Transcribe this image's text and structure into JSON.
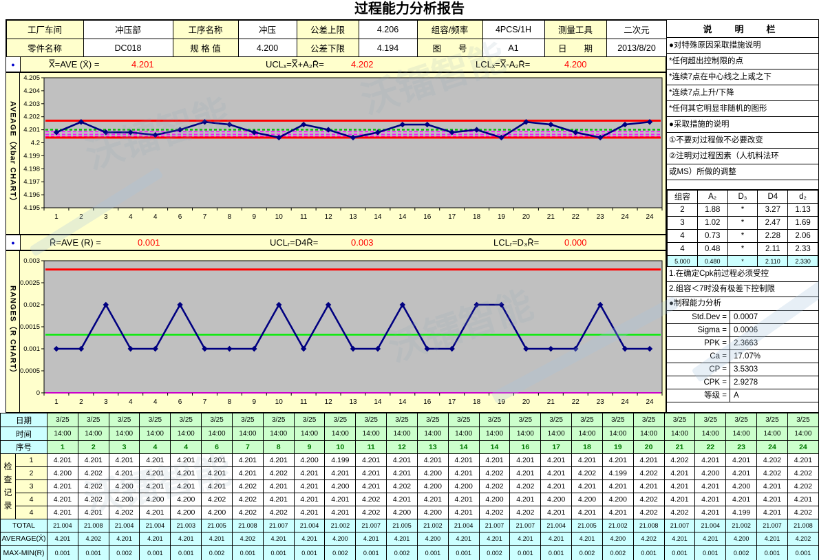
{
  "title": "过程能力分析报告",
  "watermark": "沃镭智能",
  "header": {
    "rows": [
      [
        {
          "label": "工厂车间",
          "value": "冲压部"
        },
        {
          "label": "工序名称",
          "value": "冲压"
        },
        {
          "label": "公差上限",
          "value": "4.206"
        },
        {
          "label": "组容/频率",
          "value": "4PCS/1H"
        },
        {
          "label": "测量工具",
          "value": "二次元"
        }
      ],
      [
        {
          "label": "零件名称",
          "value": "DC018"
        },
        {
          "label": "规 格 值",
          "value": "4.200"
        },
        {
          "label": "公差下限",
          "value": "4.194"
        },
        {
          "label": "图　　号",
          "value": "A1"
        },
        {
          "label": "日　　期",
          "value": "2013/8/20"
        }
      ]
    ]
  },
  "xbar_stats": {
    "bullet": "●",
    "f1": "X̿=AVE (X̄) =",
    "v1": "4.201",
    "f2": "UCLₓ=X̿+A₂R̄=",
    "v2": "4.202",
    "f3": "LCLₓ=X̿-A₂R̄=",
    "v3": "4.200"
  },
  "r_stats": {
    "bullet": "●",
    "f1": "R̄=AVE (R) =",
    "v1": "0.001",
    "f2": "UCLᵣ=D4R̄=",
    "v2": "0.003",
    "f3": "LCLᵣ=D₃R̄=",
    "v3": "0.000"
  },
  "chart_data": [
    {
      "type": "line",
      "name": "xbar-chart",
      "side_label": "AVEAGE（Xbar CHART）",
      "categories": [
        "1",
        "2",
        "3",
        "4",
        "4",
        "6",
        "7",
        "8",
        "9",
        "10",
        "11",
        "12",
        "13",
        "14",
        "14",
        "16",
        "17",
        "18",
        "19",
        "20",
        "21",
        "22",
        "23",
        "24",
        "24"
      ],
      "values": [
        4.2008,
        4.2016,
        4.2008,
        4.2008,
        4.2006,
        4.201,
        4.2016,
        4.2014,
        4.2008,
        4.2004,
        4.2014,
        4.201,
        4.2004,
        4.2008,
        4.2014,
        4.2014,
        4.2008,
        4.201,
        4.2004,
        4.2016,
        4.2014,
        4.2008,
        4.2004,
        4.2014,
        4.2016
      ],
      "ucl": 4.2017,
      "center": 4.201,
      "lcl": 4.2004,
      "zone_lines": [
        4.20085,
        4.20065,
        4.2005
      ],
      "ylim": [
        4.195,
        4.205
      ],
      "yticks": [
        "4.205",
        "4.204",
        "4.203",
        "4.202",
        "4.201",
        "4.2",
        "4.199",
        "4.198",
        "4.197",
        "4.196",
        "4.195"
      ],
      "center_dash": true,
      "colors": {
        "series": "#000080",
        "ucl": "#FF0000",
        "center": "#00BB00",
        "lcl": "#FF0000",
        "zone": "#FF00FF",
        "plot_bg": "#C0C0C0",
        "outer_bg": "#FFFFCC"
      }
    },
    {
      "type": "line",
      "name": "r-chart",
      "side_label": "RANGES（R CHART）",
      "categories": [
        "1",
        "2",
        "3",
        "4",
        "4",
        "6",
        "7",
        "8",
        "9",
        "10",
        "11",
        "12",
        "13",
        "14",
        "14",
        "16",
        "17",
        "18",
        "19",
        "20",
        "21",
        "22",
        "23",
        "24",
        "24"
      ],
      "values": [
        0.001,
        0.001,
        0.002,
        0.001,
        0.001,
        0.002,
        0.001,
        0.001,
        0.001,
        0.002,
        0.001,
        0.002,
        0.001,
        0.001,
        0.002,
        0.001,
        0.001,
        0.002,
        0.002,
        0.001,
        0.001,
        0.001,
        0.002,
        0.001,
        0.001
      ],
      "ucl": 0.0028,
      "center": 0.00132,
      "lcl": 0,
      "zone_lines": [],
      "ylim": [
        0,
        0.003
      ],
      "yticks": [
        "0.003",
        "0.0025",
        "0.002",
        "0.0015",
        "0.001",
        "0.0005",
        "0"
      ],
      "center_dash": false,
      "colors": {
        "series": "#000080",
        "ucl": "#FF0000",
        "center": "#00EE00",
        "lcl": "#CC00CC",
        "zone": "#FF00FF",
        "plot_bg": "#C0C0C0",
        "outer_bg": "#FFFFCC"
      }
    }
  ],
  "sidebar": {
    "title": "说　明　栏",
    "notes": [
      "●对特殊原因采取措施说明",
      "*任何超出控制限的点",
      "*连续7点在中心线之上或之下",
      "*连续7点上升/下降",
      "*任何其它明显非随机的图形",
      "●采取措施的说明",
      "①不要对过程做不必要改变",
      "②注明对过程因素（人机料法环",
      "或MS）所做的调整"
    ],
    "constants": {
      "headers": [
        "组容",
        "A₂",
        "D₃",
        "D4",
        "d₂"
      ],
      "rows": [
        [
          "2",
          "1.88",
          "*",
          "3.27",
          "1.13"
        ],
        [
          "3",
          "1.02",
          "*",
          "2.47",
          "1.69"
        ],
        [
          "4",
          "0.73",
          "*",
          "2.28",
          "2.06"
        ],
        [
          "4",
          "0.48",
          "*",
          "2.11",
          "2.33"
        ]
      ],
      "active_row": [
        "5.000",
        "0.480",
        "*",
        "2.110",
        "2.330"
      ]
    },
    "cpk_notes": [
      "1.在确定Cpk前过程必须受控",
      "2.组容＜7时没有极差下控制限"
    ],
    "capability_title": "●制程能力分析",
    "capability": [
      {
        "label": "Std.Dev =",
        "value": "0.0007"
      },
      {
        "label": "Sigma =",
        "value": "0.0006"
      },
      {
        "label": "PPK =",
        "value": "2.3663"
      },
      {
        "label": "Ca =",
        "value": "17.07%"
      },
      {
        "label": "CP =",
        "value": "3.5303"
      },
      {
        "label": "CPK =",
        "value": "2.9278"
      },
      {
        "label": "等级 =",
        "value": "A"
      }
    ]
  },
  "bottom_table": {
    "date_label": "日期",
    "time_label": "时间",
    "seq_label": "序号",
    "record_label": "检\n查\n记\n录",
    "record_row_nums": [
      "1",
      "2",
      "3",
      "4",
      "4"
    ],
    "dates": [
      "3/25",
      "3/25",
      "3/25",
      "3/25",
      "3/25",
      "3/25",
      "3/25",
      "3/25",
      "3/25",
      "3/25",
      "3/25",
      "3/25",
      "3/25",
      "3/25",
      "3/25",
      "3/25",
      "3/25",
      "3/25",
      "3/25",
      "3/25",
      "3/25",
      "3/25",
      "3/25",
      "3/25",
      "3/25"
    ],
    "times": [
      "14:00",
      "14:00",
      "14:00",
      "14:00",
      "14:00",
      "14:00",
      "14:00",
      "14:00",
      "14:00",
      "14:00",
      "14:00",
      "14:00",
      "14:00",
      "14:00",
      "14:00",
      "14:00",
      "14:00",
      "14:00",
      "14:00",
      "14:00",
      "14:00",
      "14:00",
      "14:00",
      "14:00",
      "14:00"
    ],
    "seq": [
      "1",
      "2",
      "3",
      "4",
      "4",
      "6",
      "7",
      "8",
      "9",
      "10",
      "11",
      "12",
      "13",
      "14",
      "14",
      "16",
      "17",
      "18",
      "19",
      "20",
      "21",
      "22",
      "23",
      "24",
      "24"
    ],
    "records": [
      [
        "4.201",
        "4.201",
        "4.201",
        "4.201",
        "4.201",
        "4.201",
        "4.201",
        "4.201",
        "4.200",
        "4.199",
        "4.201",
        "4.201",
        "4.201",
        "4.201",
        "4.201",
        "4.201",
        "4.201",
        "4.201",
        "4.201",
        "4.201",
        "4.202",
        "4.201",
        "4.201",
        "4.202",
        "4.201"
      ],
      [
        "4.200",
        "4.202",
        "4.201",
        "4.201",
        "4.201",
        "4.201",
        "4.201",
        "4.202",
        "4.201",
        "4.201",
        "4.201",
        "4.201",
        "4.200",
        "4.201",
        "4.202",
        "4.201",
        "4.201",
        "4.202",
        "4.199",
        "4.202",
        "4.201",
        "4.200",
        "4.201",
        "4.202",
        "4.202"
      ],
      [
        "4.201",
        "4.202",
        "4.200",
        "4.201",
        "4.201",
        "4.201",
        "4.202",
        "4.201",
        "4.201",
        "4.200",
        "4.201",
        "4.202",
        "4.200",
        "4.200",
        "4.202",
        "4.202",
        "4.201",
        "4.201",
        "4.201",
        "4.201",
        "4.201",
        "4.201",
        "4.200",
        "4.201",
        "4.202"
      ],
      [
        "4.201",
        "4.202",
        "4.200",
        "4.200",
        "4.200",
        "4.202",
        "4.202",
        "4.201",
        "4.201",
        "4.201",
        "4.202",
        "4.201",
        "4.201",
        "4.201",
        "4.200",
        "4.201",
        "4.200",
        "4.200",
        "4.200",
        "4.202",
        "4.201",
        "4.201",
        "4.201",
        "4.201",
        "4.201"
      ],
      [
        "4.201",
        "4.201",
        "4.202",
        "4.201",
        "4.200",
        "4.200",
        "4.202",
        "4.202",
        "4.201",
        "4.201",
        "4.202",
        "4.200",
        "4.200",
        "4.201",
        "4.202",
        "4.202",
        "4.201",
        "4.201",
        "4.201",
        "4.202",
        "4.202",
        "4.201",
        "4.199",
        "4.201",
        "4.202"
      ]
    ],
    "total_label": "TOTAL",
    "average_label": "AVERAGE(X̄)",
    "range_label": "MAX-MIN(R)",
    "totals": [
      "21.004",
      "21.008",
      "21.004",
      "21.004",
      "21.003",
      "21.005",
      "21.008",
      "21.007",
      "21.004",
      "21.002",
      "21.007",
      "21.005",
      "21.002",
      "21.004",
      "21.007",
      "21.007",
      "21.004",
      "21.005",
      "21.002",
      "21.008",
      "21.007",
      "21.004",
      "21.002",
      "21.007",
      "21.008"
    ],
    "averages": [
      "4.201",
      "4.202",
      "4.201",
      "4.201",
      "4.201",
      "4.201",
      "4.202",
      "4.201",
      "4.201",
      "4.200",
      "4.201",
      "4.201",
      "4.200",
      "4.201",
      "4.201",
      "4.201",
      "4.201",
      "4.201",
      "4.200",
      "4.202",
      "4.201",
      "4.201",
      "4.200",
      "4.201",
      "4.202"
    ],
    "ranges": [
      "0.001",
      "0.001",
      "0.002",
      "0.001",
      "0.001",
      "0.002",
      "0.001",
      "0.001",
      "0.001",
      "0.002",
      "0.001",
      "0.002",
      "0.001",
      "0.001",
      "0.002",
      "0.001",
      "0.001",
      "0.002",
      "0.002",
      "0.001",
      "0.001",
      "0.001",
      "0.002",
      "0.001",
      "0.001"
    ]
  }
}
